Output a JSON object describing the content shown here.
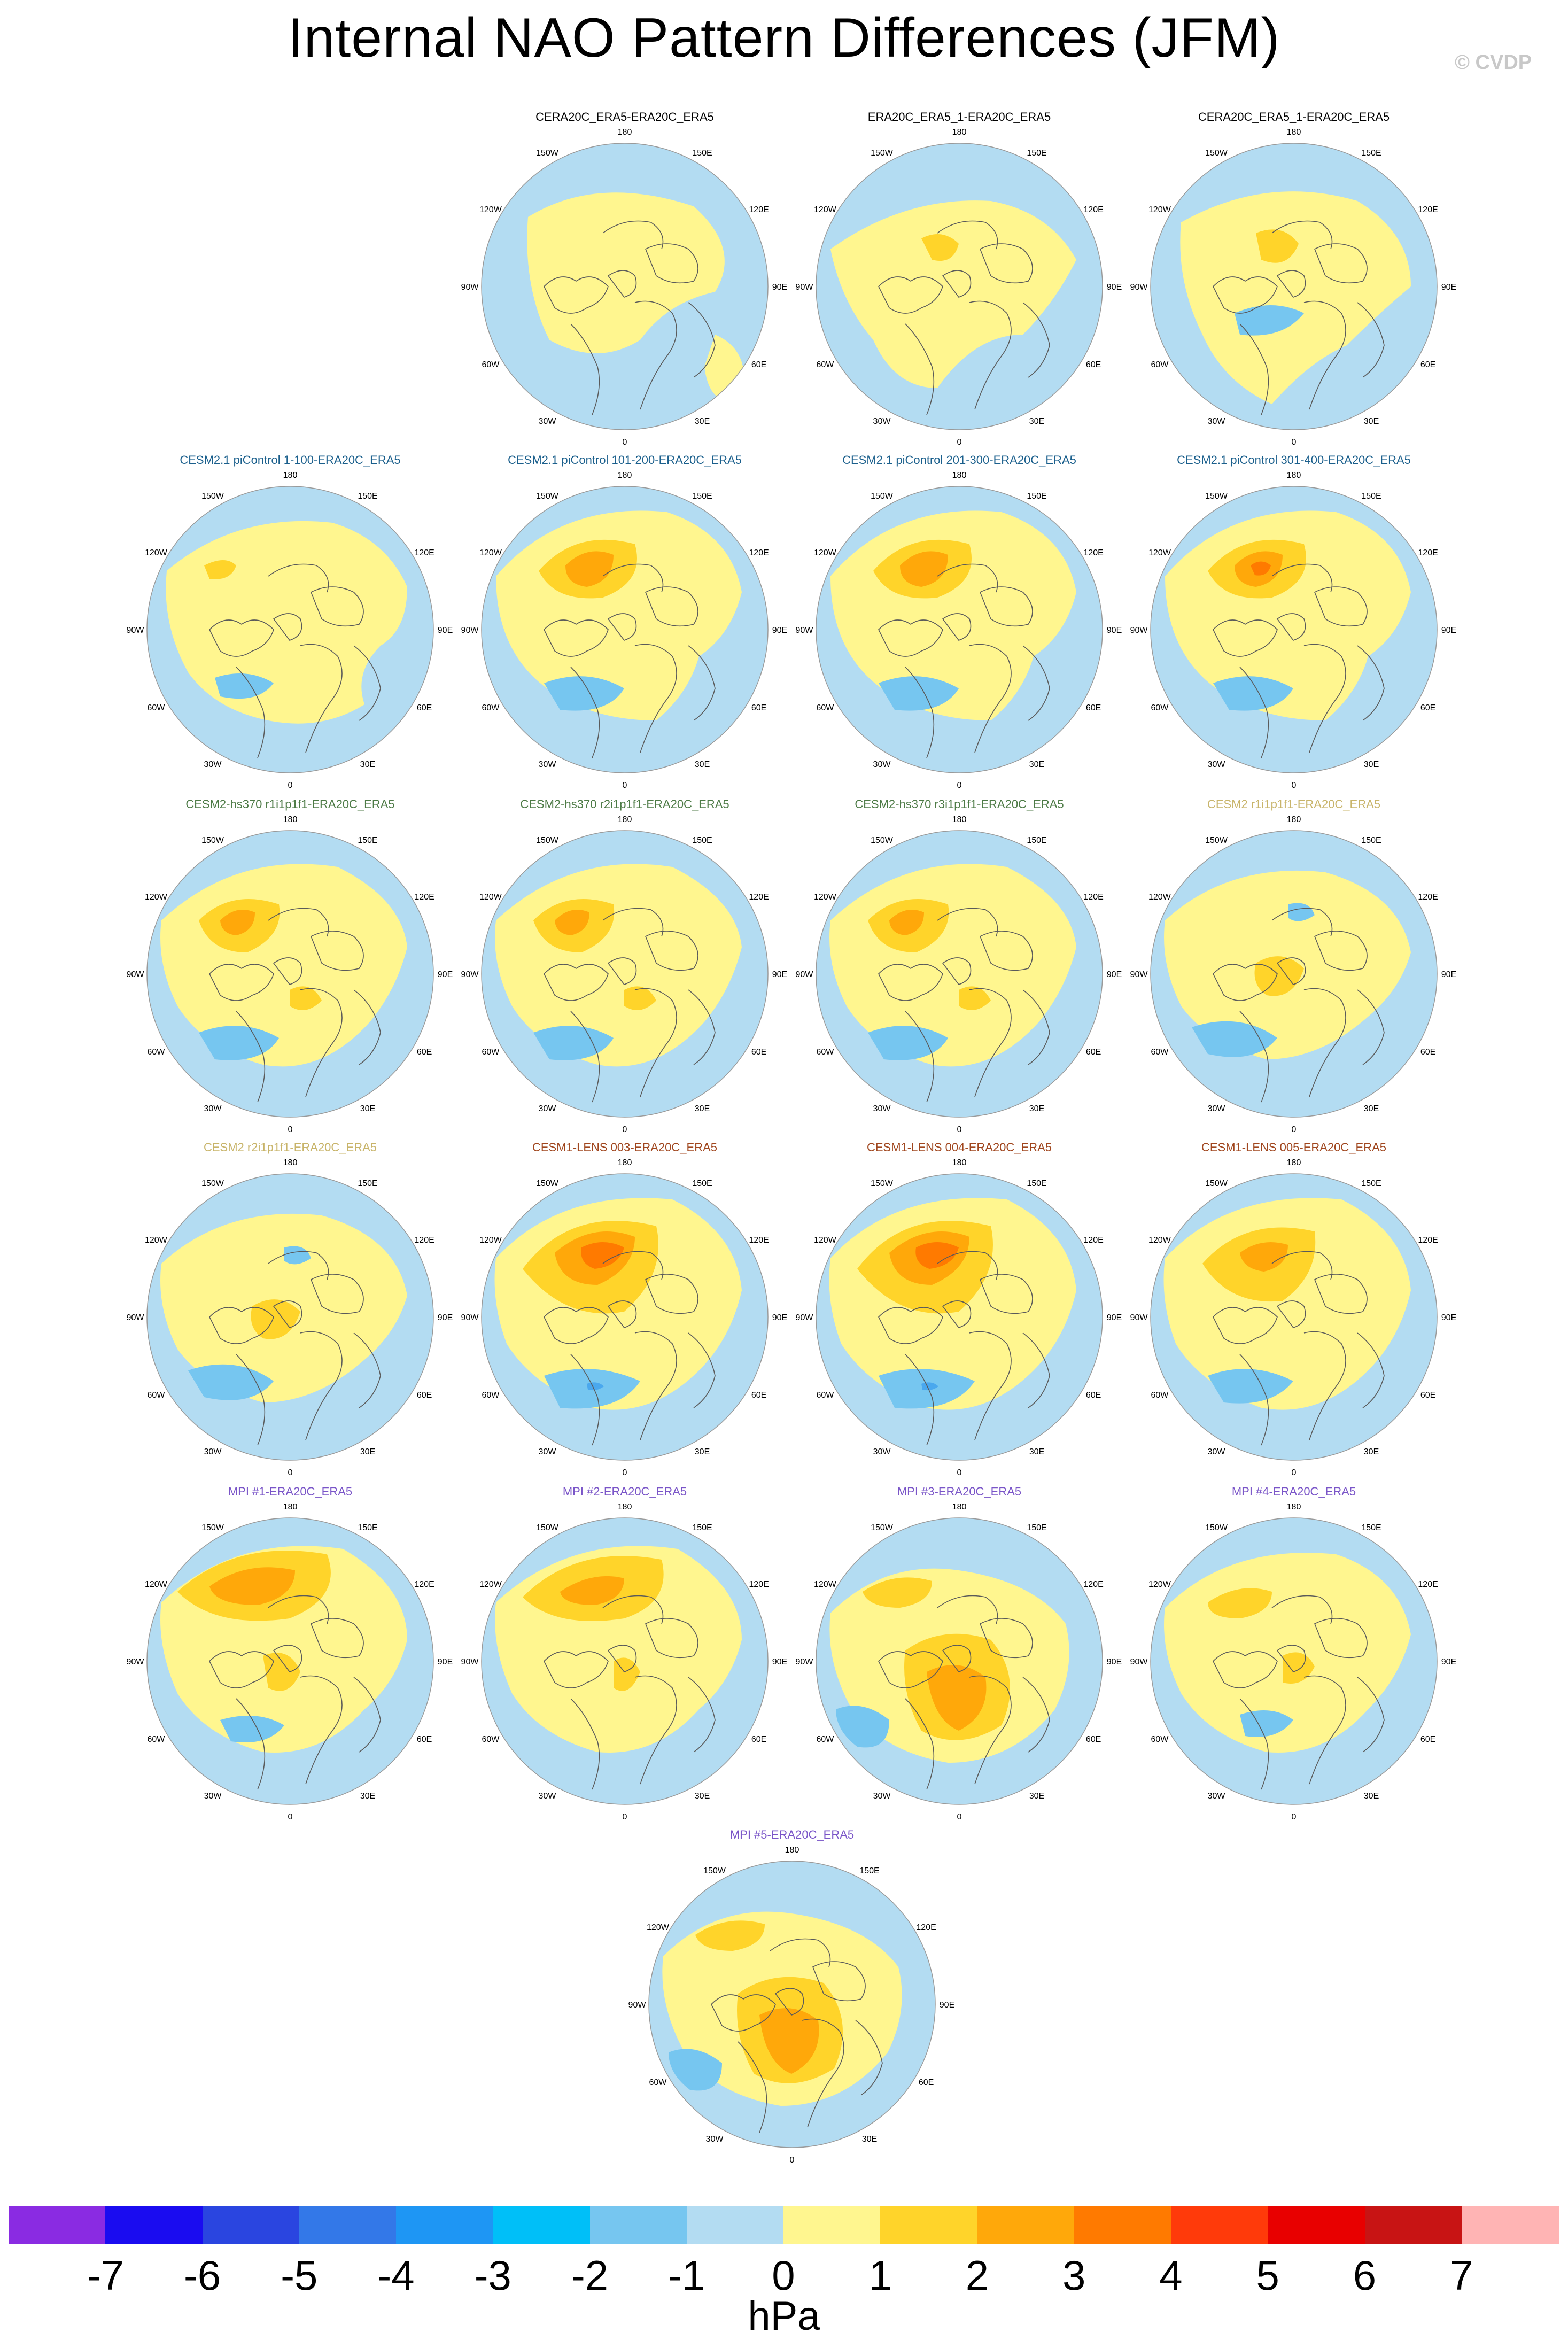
{
  "title": "Internal NAO Pattern Differences (JFM)",
  "credit": "© CVDP",
  "colors": {
    "ocean": "#b3dcf2",
    "neg1_2": "#76c6f0",
    "neg2_3": "#4aa8ee",
    "neg3_4": "#2f8bf0",
    "pos0_1": "#fff68f",
    "pos1_2": "#ffd42a",
    "pos2_3": "#ffa80a",
    "pos3_4": "#ff7a00",
    "pos4_5": "#f23a0a",
    "coast": "#5a5a5a"
  },
  "lon_labels": [
    "180",
    "150E",
    "120E",
    "90E",
    "60E",
    "30E",
    "0",
    "30W",
    "60W",
    "90W",
    "120W",
    "150W"
  ],
  "panels": [
    {
      "title": "CERA20C_ERA5-ERA20C_ERA5",
      "color": "#000000",
      "variant": "obs1"
    },
    {
      "title": "ERA20C_ERA5_1-ERA20C_ERA5",
      "color": "#000000",
      "variant": "obs2"
    },
    {
      "title": "CERA20C_ERA5_1-ERA20C_ERA5",
      "color": "#000000",
      "variant": "obs3"
    },
    {
      "title": "CESM2.1 piControl 1-100-ERA20C_ERA5",
      "color": "#1a5f8c",
      "variant": "cesmweak"
    },
    {
      "title": "CESM2.1 piControl 101-200-ERA20C_ERA5",
      "color": "#1a5f8c",
      "variant": "cesm"
    },
    {
      "title": "CESM2.1 piControl 201-300-ERA20C_ERA5",
      "color": "#1a5f8c",
      "variant": "cesm"
    },
    {
      "title": "CESM2.1 piControl 301-400-ERA20C_ERA5",
      "color": "#1a5f8c",
      "variant": "cesmstrong"
    },
    {
      "title": "CESM2-hs370 r1i1p1f1-ERA20C_ERA5",
      "color": "#4c7a45",
      "variant": "hs"
    },
    {
      "title": "CESM2-hs370 r2i1p1f1-ERA20C_ERA5",
      "color": "#4c7a45",
      "variant": "hs"
    },
    {
      "title": "CESM2-hs370 r3i1p1f1-ERA20C_ERA5",
      "color": "#4c7a45",
      "variant": "hs"
    },
    {
      "title": "CESM2 r1i1p1f1-ERA20C_ERA5",
      "color": "#c8b46a",
      "variant": "cesm2"
    },
    {
      "title": "CESM2 r2i1p1f1-ERA20C_ERA5",
      "color": "#c8b46a",
      "variant": "cesm2"
    },
    {
      "title": "CESM1-LENS 003-ERA20C_ERA5",
      "color": "#a0461e",
      "variant": "lens"
    },
    {
      "title": "CESM1-LENS 004-ERA20C_ERA5",
      "color": "#a0461e",
      "variant": "lens"
    },
    {
      "title": "CESM1-LENS 005-ERA20C_ERA5",
      "color": "#a0461e",
      "variant": "lensweak"
    },
    {
      "title": "MPI #1-ERA20C_ERA5",
      "color": "#7a55c8",
      "variant": "mpi1"
    },
    {
      "title": "MPI #2-ERA20C_ERA5",
      "color": "#7a55c8",
      "variant": "mpi2"
    },
    {
      "title": "MPI #3-ERA20C_ERA5",
      "color": "#7a55c8",
      "variant": "mpi3"
    },
    {
      "title": "MPI #4-ERA20C_ERA5",
      "color": "#7a55c8",
      "variant": "mpi4"
    },
    {
      "title": "MPI #5-ERA20C_ERA5",
      "color": "#7a55c8",
      "variant": "mpi3"
    }
  ],
  "colorbar": {
    "colors": [
      "#8a2be2",
      "#1a0cf0",
      "#2a45e0",
      "#3378e8",
      "#1e96f4",
      "#00bff8",
      "#76c6f0",
      "#b3dcf2",
      "#fff68f",
      "#ffd42a",
      "#ffa80a",
      "#ff7a00",
      "#ff3a0a",
      "#e80000",
      "#c81414",
      "#ffb4b4"
    ],
    "tick_labels": [
      "-7",
      "-6",
      "-5",
      "-4",
      "-3",
      "-2",
      "-1",
      "0",
      "1",
      "2",
      "3",
      "4",
      "5",
      "6",
      "7"
    ],
    "units": "hPa"
  }
}
